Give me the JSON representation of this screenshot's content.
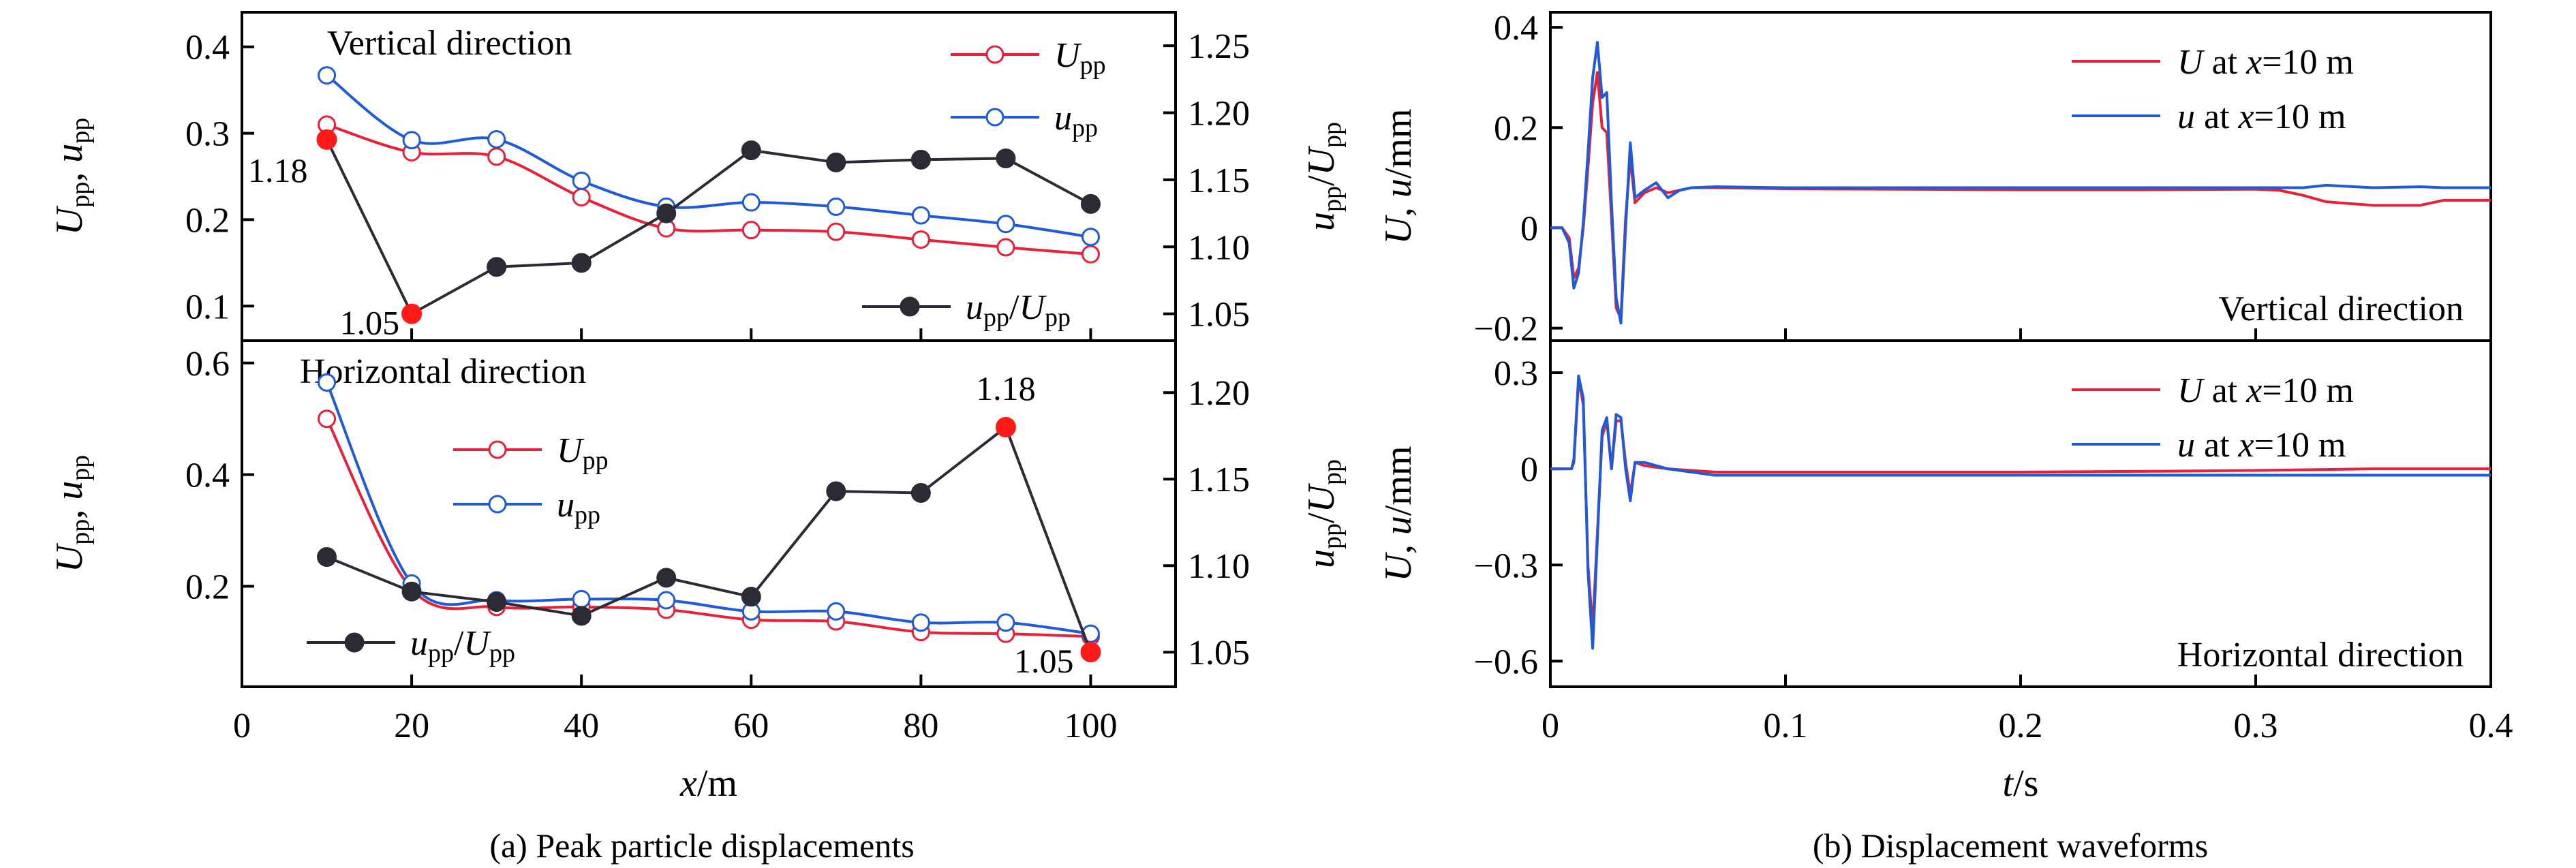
{
  "chart_data": [
    {
      "id": "a_vertical",
      "type": "line",
      "panel_title": "Vertical direction",
      "x": [
        10,
        20,
        30,
        40,
        50,
        60,
        70,
        80,
        90,
        100
      ],
      "xlim": [
        0,
        110
      ],
      "ylim": [
        0.06,
        0.44
      ],
      "y2lim": [
        1.03,
        1.275
      ],
      "yticks": [
        0.1,
        0.2,
        0.3,
        0.4
      ],
      "ytick_labels": [
        "0.1",
        "0.2",
        "0.3",
        "0.4"
      ],
      "y2ticks": [
        1.05,
        1.1,
        1.15,
        1.2,
        1.25
      ],
      "y2tick_labels": [
        "1.05",
        "1.10",
        "1.15",
        "1.20",
        "1.25"
      ],
      "ylabel": {
        "main": "U",
        "sub": "pp",
        "mid": ", ",
        "main2": "u",
        "sub2": "pp"
      },
      "y2label": {
        "main": "u",
        "sub": "pp",
        "slash": "/",
        "main2": "U",
        "sub2": "pp"
      },
      "series": [
        {
          "name": "U",
          "name_sub": "pp",
          "axis": "left",
          "color": "#e8213a",
          "marker": "open-circle",
          "values": [
            0.31,
            0.278,
            0.273,
            0.226,
            0.19,
            0.188,
            0.186,
            0.177,
            0.168,
            0.16
          ]
        },
        {
          "name": "u",
          "name_sub": "pp",
          "axis": "left",
          "color": "#1f5bd6",
          "marker": "open-circle",
          "values": [
            0.367,
            0.292,
            0.293,
            0.245,
            0.215,
            0.22,
            0.215,
            0.205,
            0.195,
            0.18
          ]
        },
        {
          "name": "u",
          "name_sub": "pp",
          "name_slash": "/",
          "name2": "U",
          "name2_sub": "pp",
          "axis": "right",
          "color": "#2b2b35",
          "marker": "filled-circle",
          "values": [
            1.18,
            1.05,
            1.085,
            1.088,
            1.125,
            1.172,
            1.163,
            1.165,
            1.166,
            1.132
          ]
        }
      ],
      "annotations": [
        {
          "text": "1.18",
          "x": 10,
          "y": 1.18,
          "axis": "right",
          "align": "left"
        },
        {
          "text": "1.05",
          "x": 20,
          "y": 1.05,
          "axis": "right",
          "align": "left"
        }
      ],
      "highlight_points": [
        {
          "x": 10,
          "y": 1.18,
          "color": "#ff1a1a"
        },
        {
          "x": 20,
          "y": 1.05,
          "color": "#ff1a1a"
        }
      ]
    },
    {
      "id": "a_horizontal",
      "type": "line",
      "panel_title": "Horizontal direction",
      "x": [
        10,
        20,
        30,
        40,
        50,
        60,
        70,
        80,
        90,
        100
      ],
      "xlim": [
        0,
        110
      ],
      "ylim": [
        0.02,
        0.64
      ],
      "y2lim": [
        1.03,
        1.23
      ],
      "xticks": [
        0,
        20,
        40,
        60,
        80,
        100
      ],
      "xtick_labels": [
        "0",
        "20",
        "40",
        "60",
        "80",
        "100"
      ],
      "yticks": [
        0.2,
        0.4,
        0.6
      ],
      "ytick_labels": [
        "0.2",
        "0.4",
        "0.6"
      ],
      "y2ticks": [
        1.05,
        1.1,
        1.15,
        1.2
      ],
      "y2tick_labels": [
        "1.05",
        "1.10",
        "1.15",
        "1.20"
      ],
      "xlabel": {
        "main": "x",
        "unit": "/m"
      },
      "ylabel": {
        "main": "U",
        "sub": "pp",
        "mid": ", ",
        "main2": "u",
        "sub2": "pp"
      },
      "y2label": {
        "main": "u",
        "sub": "pp",
        "slash": "/",
        "main2": "U",
        "sub2": "pp"
      },
      "series": [
        {
          "name": "U",
          "name_sub": "pp",
          "axis": "left",
          "color": "#e8213a",
          "marker": "open-circle",
          "values": [
            0.5,
            0.195,
            0.163,
            0.163,
            0.158,
            0.14,
            0.137,
            0.118,
            0.115,
            0.11
          ]
        },
        {
          "name": "u",
          "name_sub": "pp",
          "axis": "left",
          "color": "#1f5bd6",
          "marker": "open-circle",
          "values": [
            0.565,
            0.205,
            0.175,
            0.177,
            0.175,
            0.155,
            0.155,
            0.135,
            0.135,
            0.115
          ]
        },
        {
          "name": "u",
          "name_sub": "pp",
          "name_slash": "/",
          "name2": "U",
          "name2_sub": "pp",
          "axis": "right",
          "color": "#2b2b35",
          "marker": "filled-circle",
          "values": [
            1.105,
            1.085,
            1.079,
            1.071,
            1.093,
            1.082,
            1.143,
            1.142,
            1.18,
            1.05
          ]
        }
      ],
      "annotations": [
        {
          "text": "1.18",
          "x": 90,
          "y": 1.18,
          "axis": "right",
          "align": "above"
        },
        {
          "text": "1.05",
          "x": 100,
          "y": 1.05,
          "axis": "right",
          "align": "left"
        }
      ],
      "highlight_points": [
        {
          "x": 90,
          "y": 1.18,
          "color": "#ff1a1a"
        },
        {
          "x": 100,
          "y": 1.05,
          "color": "#ff1a1a"
        }
      ]
    },
    {
      "id": "b_vertical",
      "type": "line",
      "panel_title": "Vertical direction",
      "xlim": [
        0,
        0.4
      ],
      "ylim": [
        -0.225,
        0.43
      ],
      "yticks": [
        -0.2,
        0,
        0.2,
        0.4
      ],
      "ytick_labels": [
        "−0.2",
        "0",
        "0.2",
        "0.4"
      ],
      "ylabel": {
        "main": "U",
        "mid": ", ",
        "main2": "u",
        "unit": "/mm"
      },
      "series": [
        {
          "name_main": "U",
          "name_rest": " at ",
          "name_var": "x",
          "name_tail": "=10 m",
          "color": "#e8213a",
          "x": [
            0,
            0.005,
            0.008,
            0.01,
            0.012,
            0.014,
            0.016,
            0.018,
            0.02,
            0.022,
            0.024,
            0.026,
            0.028,
            0.03,
            0.032,
            0.034,
            0.036,
            0.04,
            0.045,
            0.05,
            0.055,
            0.06,
            0.07,
            0.1,
            0.15,
            0.2,
            0.25,
            0.3,
            0.31,
            0.32,
            0.33,
            0.35,
            0.37,
            0.38,
            0.4
          ],
          "values": [
            0,
            0,
            -0.02,
            -0.1,
            -0.08,
            0.0,
            0.12,
            0.25,
            0.31,
            0.2,
            0.19,
            0.02,
            -0.16,
            -0.18,
            0.02,
            0.14,
            0.05,
            0.07,
            0.08,
            0.07,
            0.075,
            0.08,
            0.08,
            0.078,
            0.077,
            0.076,
            0.076,
            0.077,
            0.075,
            0.065,
            0.052,
            0.045,
            0.045,
            0.055,
            0.055
          ]
        },
        {
          "name_main": "u",
          "name_rest": " at ",
          "name_var": "x",
          "name_tail": "=10 m",
          "color": "#1f5bd6",
          "x": [
            0,
            0.005,
            0.008,
            0.01,
            0.012,
            0.014,
            0.016,
            0.018,
            0.02,
            0.022,
            0.024,
            0.026,
            0.028,
            0.03,
            0.032,
            0.034,
            0.036,
            0.04,
            0.045,
            0.05,
            0.055,
            0.06,
            0.07,
            0.1,
            0.15,
            0.2,
            0.25,
            0.3,
            0.31,
            0.32,
            0.33,
            0.35,
            0.37,
            0.38,
            0.4
          ],
          "values": [
            0,
            0,
            -0.03,
            -0.12,
            -0.09,
            0.01,
            0.15,
            0.3,
            0.37,
            0.26,
            0.27,
            0.05,
            -0.14,
            -0.19,
            0.0,
            0.17,
            0.06,
            0.075,
            0.09,
            0.06,
            0.075,
            0.08,
            0.082,
            0.08,
            0.08,
            0.08,
            0.08,
            0.08,
            0.08,
            0.08,
            0.085,
            0.08,
            0.082,
            0.08,
            0.08
          ]
        }
      ]
    },
    {
      "id": "b_horizontal",
      "type": "line",
      "panel_title": "Horizontal direction",
      "xlim": [
        0,
        0.4
      ],
      "ylim": [
        -0.68,
        0.4
      ],
      "xticks": [
        0,
        0.1,
        0.2,
        0.3,
        0.4
      ],
      "xtick_labels": [
        "0",
        "0.1",
        "0.2",
        "0.3",
        "0.4"
      ],
      "yticks": [
        -0.6,
        -0.3,
        0,
        0.3
      ],
      "ytick_labels": [
        "−0.6",
        "−0.3",
        "0",
        "0.3"
      ],
      "xlabel": {
        "main": "t",
        "unit": "/s"
      },
      "ylabel": {
        "main": "U",
        "mid": ", ",
        "main2": "u",
        "unit": "/mm"
      },
      "series": [
        {
          "name_main": "U",
          "name_rest": " at ",
          "name_var": "x",
          "name_tail": "=10 m",
          "color": "#e8213a",
          "x": [
            0,
            0.009,
            0.01,
            0.012,
            0.014,
            0.016,
            0.018,
            0.02,
            0.022,
            0.024,
            0.026,
            0.028,
            0.03,
            0.032,
            0.034,
            0.036,
            0.04,
            0.05,
            0.06,
            0.07,
            0.1,
            0.15,
            0.2,
            0.25,
            0.3,
            0.35,
            0.4
          ],
          "values": [
            0,
            0,
            0.02,
            0.28,
            0.2,
            -0.3,
            -0.5,
            -0.2,
            0.1,
            0.15,
            0.0,
            0.15,
            0.15,
            0.02,
            -0.08,
            0.02,
            0.01,
            0.0,
            -0.005,
            -0.01,
            -0.01,
            -0.01,
            -0.01,
            -0.008,
            -0.005,
            0.0,
            0.0
          ]
        },
        {
          "name_main": "u",
          "name_rest": " at ",
          "name_var": "x",
          "name_tail": "=10 m",
          "color": "#1f5bd6",
          "x": [
            0,
            0.009,
            0.01,
            0.012,
            0.014,
            0.016,
            0.018,
            0.02,
            0.022,
            0.024,
            0.026,
            0.028,
            0.03,
            0.032,
            0.034,
            0.036,
            0.04,
            0.05,
            0.06,
            0.07,
            0.1,
            0.15,
            0.2,
            0.25,
            0.3,
            0.35,
            0.4
          ],
          "values": [
            0,
            0,
            0.03,
            0.29,
            0.22,
            -0.32,
            -0.56,
            -0.22,
            0.12,
            0.16,
            0.0,
            0.17,
            0.16,
            0.0,
            -0.1,
            0.02,
            0.02,
            0.0,
            -0.01,
            -0.02,
            -0.02,
            -0.02,
            -0.02,
            -0.02,
            -0.02,
            -0.02,
            -0.02
          ]
        }
      ]
    }
  ],
  "captions": {
    "a": "(a) Peak particle displacements",
    "b": "(b) Displacement waveforms"
  }
}
